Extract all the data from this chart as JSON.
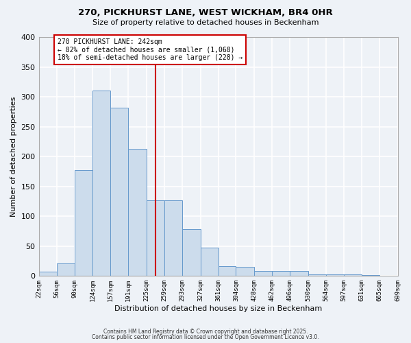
{
  "title": "270, PICKHURST LANE, WEST WICKHAM, BR4 0HR",
  "subtitle": "Size of property relative to detached houses in Beckenham",
  "xlabel": "Distribution of detached houses by size in Beckenham",
  "ylabel": "Number of detached properties",
  "bar_color": "#ccdcec",
  "bar_edge_color": "#6699cc",
  "background_color": "#eef2f7",
  "plot_bg_color": "#eef2f7",
  "grid_color": "#ffffff",
  "bins": [
    22,
    56,
    90,
    124,
    157,
    191,
    225,
    259,
    293,
    327,
    361,
    394,
    428,
    462,
    496,
    530,
    564,
    597,
    631,
    665,
    699
  ],
  "bin_labels": [
    "22sqm",
    "56sqm",
    "90sqm",
    "124sqm",
    "157sqm",
    "191sqm",
    "225sqm",
    "259sqm",
    "293sqm",
    "327sqm",
    "361sqm",
    "394sqm",
    "428sqm",
    "462sqm",
    "496sqm",
    "530sqm",
    "564sqm",
    "597sqm",
    "631sqm",
    "665sqm",
    "699sqm"
  ],
  "counts": [
    7,
    21,
    177,
    311,
    282,
    213,
    127,
    127,
    78,
    48,
    17,
    15,
    8,
    8,
    8,
    3,
    3,
    3,
    2,
    0,
    3
  ],
  "property_line_x": 242,
  "property_line_color": "#cc0000",
  "annotation_title": "270 PICKHURST LANE: 242sqm",
  "annotation_line1": "← 82% of detached houses are smaller (1,068)",
  "annotation_line2": "18% of semi-detached houses are larger (228) →",
  "annotation_box_color": "#ffffff",
  "annotation_box_edge": "#cc0000",
  "ylim": [
    0,
    400
  ],
  "yticks": [
    0,
    50,
    100,
    150,
    200,
    250,
    300,
    350,
    400
  ],
  "footer_line1": "Contains HM Land Registry data © Crown copyright and database right 2025.",
  "footer_line2": "Contains public sector information licensed under the Open Government Licence v3.0."
}
